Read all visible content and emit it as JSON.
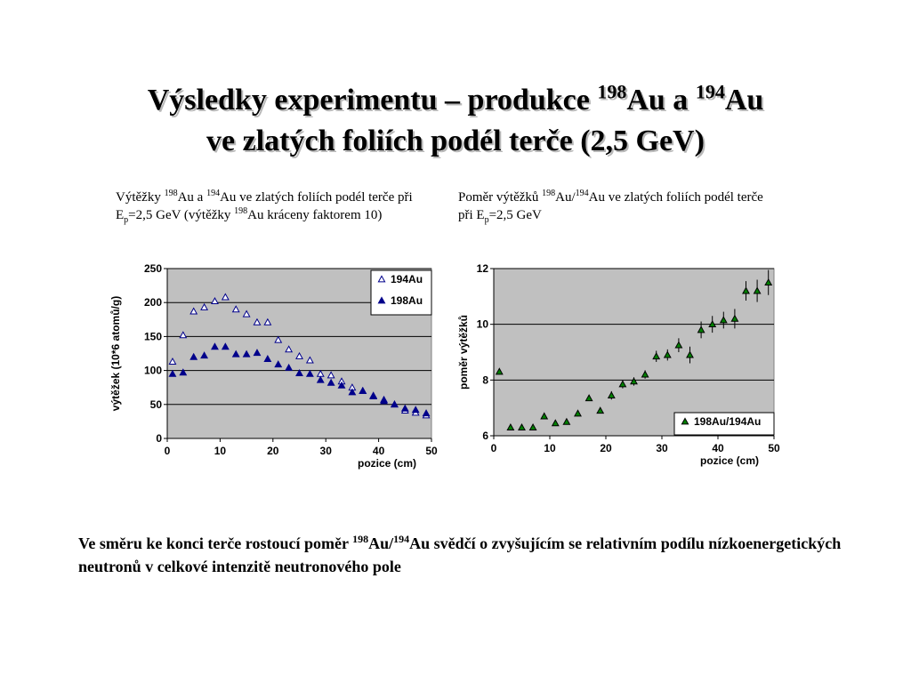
{
  "title": {
    "line1_a": "Výsledky experimentu – produkce ",
    "sup1": "198",
    "line1_b": "Au a ",
    "sup2": "194",
    "line1_c": "Au",
    "line2": "ve zlatých foliích podél terče (2,5 GeV)"
  },
  "caption_left": {
    "p1": "Výtěžky ",
    "s1": "198",
    "p2": "Au a ",
    "s2": "194",
    "p3": "Au ve zlatých foliích podél terče při E",
    "sub": "p",
    "p4": "=2,5  GeV (výtěžky ",
    "s3": "198",
    "p5": "Au kráceny faktorem 10)"
  },
  "caption_right": {
    "p1": "Poměr výtěžků ",
    "s1": "198",
    "p2": "Au/",
    "s2": "194",
    "p3": "Au ve zlatých foliích podél terče při E",
    "sub": "p",
    "p4": "=2,5 GeV"
  },
  "conclusion": {
    "p1": "Ve směru ke konci terče rostoucí poměr ",
    "s1": "198",
    "p2": "Au/",
    "s2": "194",
    "p3": "Au svědčí o zvyšujícím se relativním podílu nízkoenergetických neutronů v celkové intenzitě neutronového pole"
  },
  "colors": {
    "plot_bg": "#c0c0c0",
    "marker_194": "#00008b",
    "marker_198": "#00008b",
    "marker_ratio": "#008000"
  },
  "chart_data": [
    {
      "type": "scatter",
      "title": "",
      "xlabel": "pozice (cm)",
      "ylabel": "výtěžek (10*6 atomů/g)",
      "xlim": [
        0,
        50
      ],
      "ylim": [
        0,
        250
      ],
      "xticks": [
        0,
        10,
        20,
        30,
        40,
        50
      ],
      "yticks": [
        0,
        50,
        100,
        150,
        200,
        250
      ],
      "grid": "horizontal",
      "legend": "top-right",
      "series": [
        {
          "name": "194Au",
          "marker": "triangle-open",
          "x": [
            1,
            3,
            5,
            7,
            9,
            11,
            13,
            15,
            17,
            19,
            21,
            23,
            25,
            27,
            29,
            31,
            33,
            35,
            37,
            39,
            41,
            43,
            45,
            47,
            49
          ],
          "y": [
            113,
            152,
            187,
            193,
            202,
            208,
            190,
            183,
            171,
            171,
            145,
            131,
            121,
            115,
            95,
            93,
            84,
            75,
            70,
            63,
            57,
            50,
            41,
            38,
            34
          ]
        },
        {
          "name": "198Au",
          "marker": "triangle-filled",
          "x": [
            1,
            3,
            5,
            7,
            9,
            11,
            13,
            15,
            17,
            19,
            21,
            23,
            25,
            27,
            29,
            31,
            33,
            35,
            37,
            39,
            41,
            43,
            45,
            47,
            49
          ],
          "y": [
            95,
            97,
            120,
            122,
            135,
            135,
            124,
            124,
            126,
            117,
            109,
            104,
            96,
            95,
            86,
            82,
            78,
            68,
            70,
            62,
            55,
            50,
            44,
            42,
            37
          ]
        }
      ]
    },
    {
      "type": "scatter",
      "title": "",
      "xlabel": "pozice (cm)",
      "ylabel": "poměr výtěžků",
      "xlim": [
        0,
        50
      ],
      "ylim": [
        6,
        12
      ],
      "xticks": [
        0,
        10,
        20,
        30,
        40,
        50
      ],
      "yticks": [
        6,
        8,
        10,
        12
      ],
      "grid": "horizontal",
      "legend": "bottom-right",
      "series": [
        {
          "name": "198Au/194Au",
          "marker": "triangle-filled-green",
          "x": [
            1,
            3,
            5,
            7,
            9,
            11,
            13,
            15,
            17,
            19,
            21,
            23,
            25,
            27,
            29,
            31,
            33,
            35,
            37,
            39,
            41,
            43,
            45,
            47,
            49
          ],
          "y": [
            8.3,
            6.3,
            6.3,
            6.3,
            6.7,
            6.45,
            6.5,
            6.8,
            7.35,
            6.9,
            7.45,
            7.85,
            7.95,
            8.2,
            8.85,
            8.9,
            9.25,
            8.9,
            9.8,
            10.0,
            10.15,
            10.2,
            11.2,
            11.2,
            11.5
          ],
          "err": [
            0.1,
            0.1,
            0.1,
            0.1,
            0.1,
            0.1,
            0.1,
            0.1,
            0.1,
            0.1,
            0.15,
            0.15,
            0.15,
            0.15,
            0.2,
            0.2,
            0.25,
            0.3,
            0.3,
            0.3,
            0.3,
            0.35,
            0.35,
            0.4,
            0.45
          ]
        }
      ]
    }
  ]
}
